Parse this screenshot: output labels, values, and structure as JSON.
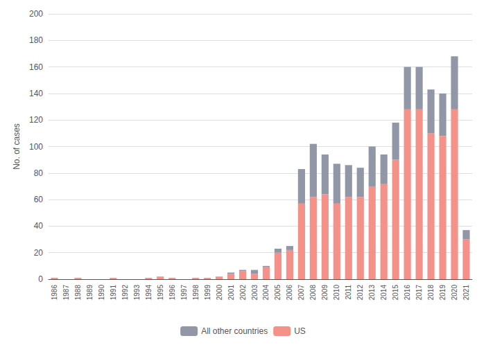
{
  "chart_data": {
    "type": "bar",
    "stacked": true,
    "categories": [
      "1986",
      "1987",
      "1988",
      "1989",
      "1990",
      "1991",
      "1992",
      "1993",
      "1994",
      "1995",
      "1996",
      "1997",
      "1998",
      "1999",
      "2000",
      "2001",
      "2002",
      "2003",
      "2004",
      "2005",
      "2006",
      "2007",
      "2008",
      "2009",
      "2010",
      "2011",
      "2012",
      "2013",
      "2014",
      "2015",
      "2016",
      "2017",
      "2018",
      "2019",
      "2020",
      "2021"
    ],
    "series": [
      {
        "name": "US",
        "color": "#f4928a",
        "values": [
          1,
          0,
          1,
          0,
          0,
          1,
          0,
          0,
          1,
          2,
          1,
          0,
          1,
          1,
          2,
          4,
          6,
          4,
          9,
          20,
          22,
          57,
          62,
          64,
          57,
          62,
          62,
          70,
          72,
          90,
          128,
          128,
          110,
          108,
          128,
          30
        ]
      },
      {
        "name": "All other countries",
        "color": "#9197a6",
        "values": [
          0,
          0,
          0,
          0,
          0,
          0,
          0,
          0,
          0,
          0,
          0,
          0,
          0,
          0,
          0,
          1,
          1,
          3,
          1,
          3,
          3,
          26,
          40,
          30,
          30,
          24,
          22,
          30,
          22,
          28,
          32,
          32,
          33,
          32,
          40,
          7
        ]
      }
    ],
    "ylabel": "No. of cases",
    "ylim": [
      0,
      200
    ],
    "yticks": [
      0,
      20,
      40,
      60,
      80,
      100,
      120,
      140,
      160,
      180,
      200
    ],
    "grid": true,
    "legend": "bottom"
  }
}
